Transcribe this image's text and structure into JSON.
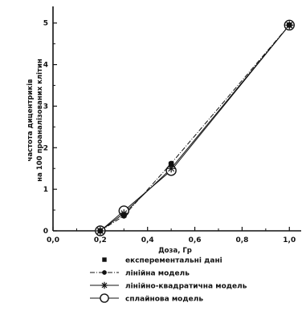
{
  "chart_data": {
    "type": "line",
    "xlabel": "Доза, Гр",
    "ylabel_line1": "частота дицентриків",
    "ylabel_line2": "на 100 проаналізованих клітин",
    "xlim": [
      0.0,
      1.05
    ],
    "ylim": [
      0,
      5.4
    ],
    "xticks": [
      {
        "value": 0.0,
        "label": "0,0"
      },
      {
        "value": 0.2,
        "label": "0,2"
      },
      {
        "value": 0.4,
        "label": "0,4"
      },
      {
        "value": 0.6,
        "label": "0,6"
      },
      {
        "value": 0.8,
        "label": "0,8"
      },
      {
        "value": 1.0,
        "label": "1,0"
      }
    ],
    "yticks": [
      {
        "value": 0,
        "label": "0"
      },
      {
        "value": 1,
        "label": "1"
      },
      {
        "value": 2,
        "label": "2"
      },
      {
        "value": 3,
        "label": "3"
      },
      {
        "value": 4,
        "label": "4"
      },
      {
        "value": 5,
        "label": "5"
      }
    ],
    "grid": false,
    "legend_position": "bottom",
    "series": [
      {
        "name": "експерементальні дані",
        "marker": "square",
        "line": "none",
        "x": [
          0.2,
          0.3,
          0.5,
          1.0
        ],
        "y": [
          0.0,
          0.38,
          1.6,
          4.95
        ]
      },
      {
        "name": "лінійна модель",
        "marker": "filled-circle",
        "line": "dashdot",
        "x": [
          0.2,
          0.3,
          0.5,
          1.0
        ],
        "y": [
          0.0,
          0.36,
          1.62,
          4.95
        ]
      },
      {
        "name": "лінійно-квадратична модель",
        "marker": "asterisk",
        "line": "solid",
        "x": [
          0.2,
          0.3,
          0.5,
          1.0
        ],
        "y": [
          0.0,
          0.42,
          1.5,
          4.95
        ]
      },
      {
        "name": "сплайнова модель",
        "marker": "open-circle",
        "line": "solid",
        "x": [
          0.2,
          0.3,
          0.5,
          1.0
        ],
        "y": [
          0.0,
          0.48,
          1.45,
          4.95
        ]
      }
    ]
  }
}
